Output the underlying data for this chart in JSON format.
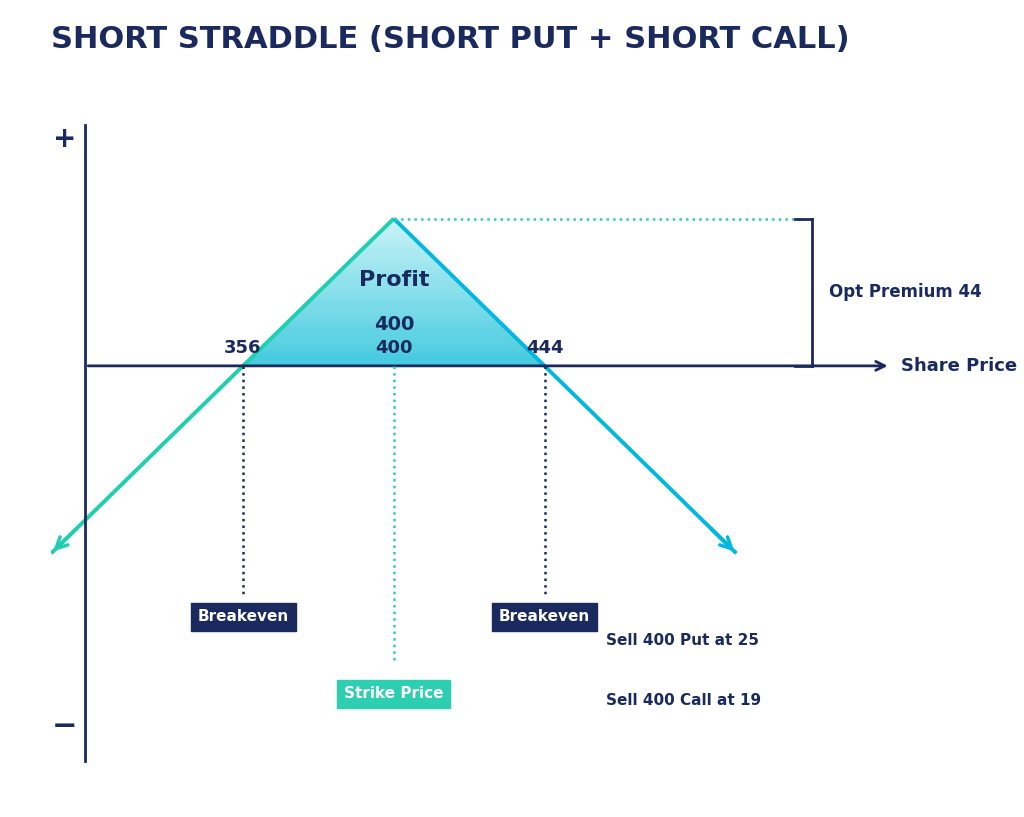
{
  "title": "SHORT STRADDLE (SHORT PUT + SHORT CALL)",
  "title_color": "#1a2a5e",
  "title_fontsize": 22,
  "bg_color": "#ffffff",
  "strike": 0,
  "breakeven_low": -44,
  "breakeven_high": 44,
  "premium": 44,
  "axis_color": "#1a2a5e",
  "profit_label": "Profit",
  "profit_strike_label": "400",
  "share_price_label": "Share Price",
  "opt_premium_label": "Opt Premium 44",
  "sell_put_label": "Sell 400 Put at 25",
  "sell_call_label": "Sell 400 Call at 19",
  "breakeven_label": "Breakeven",
  "strike_price_label": "Strike Price",
  "be_low_label": "356",
  "be_high_label": "444",
  "plus_label": "+",
  "minus_label": "−",
  "line_color_left": "#1ecfb0",
  "line_color_right": "#00b8e0",
  "fill_color_top": "#b8f0f5",
  "fill_color_bottom": "#00b8d4",
  "dark_navy": "#1a2a5e",
  "teal_bg": "#2ecfb1",
  "dotted_color_strike": "#2ecfb1",
  "dotted_color_be": "#1a2a5e",
  "dotted_horiz": "#2ecfb1"
}
